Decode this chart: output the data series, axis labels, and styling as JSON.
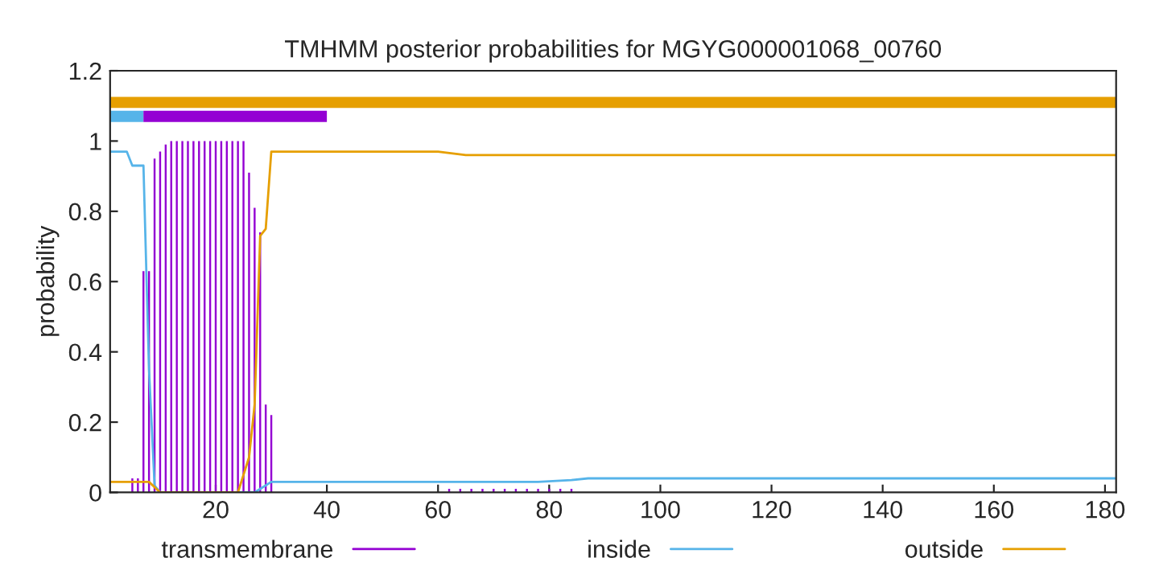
{
  "chart_data": {
    "type": "line",
    "title": "TMHMM posterior probabilities for MGYG000001068_00760",
    "ylabel": "probability",
    "xlim": [
      1,
      182
    ],
    "xticks": [
      20,
      40,
      60,
      80,
      100,
      120,
      140,
      160,
      180
    ],
    "ylim": [
      0,
      1.2
    ],
    "yticks": [
      0,
      0.2,
      0.4,
      0.6,
      0.8,
      1,
      1.2
    ],
    "grid": false,
    "legend": "bottom",
    "series": [
      {
        "name": "transmembrane",
        "type": "bar",
        "color": "#9400d3",
        "x": [
          5,
          6,
          7,
          8,
          9,
          10,
          11,
          12,
          13,
          14,
          15,
          16,
          17,
          18,
          19,
          20,
          21,
          22,
          23,
          24,
          25,
          26,
          27,
          28,
          29,
          30,
          62,
          64,
          66,
          68,
          70,
          72,
          74,
          76,
          78,
          80,
          82,
          84
        ],
        "values": [
          0.04,
          0.04,
          0.63,
          0.63,
          0.95,
          0.97,
          0.99,
          1,
          1,
          1,
          1,
          1,
          1,
          1,
          1,
          1,
          1,
          1,
          1,
          1,
          1,
          0.91,
          0.81,
          0.74,
          0.25,
          0.22,
          0.01,
          0.01,
          0.01,
          0.01,
          0.01,
          0.01,
          0.01,
          0.01,
          0.01,
          0.01,
          0.01,
          0.01
        ]
      },
      {
        "name": "inside",
        "color": "#56b4e9",
        "x": [
          1,
          4,
          5,
          7,
          8,
          9,
          10,
          27,
          29,
          30,
          78,
          84,
          87,
          182
        ],
        "values": [
          0.97,
          0.97,
          0.93,
          0.93,
          0.35,
          0.02,
          0,
          0,
          0.02,
          0.03,
          0.03,
          0.035,
          0.04,
          0.04
        ]
      },
      {
        "name": "outside",
        "color": "#e69f00",
        "x": [
          1,
          8,
          10,
          24,
          26,
          27,
          28,
          29,
          30,
          60,
          65,
          70,
          182
        ],
        "values": [
          0.03,
          0.03,
          0,
          0,
          0.1,
          0.25,
          0.73,
          0.75,
          0.97,
          0.97,
          0.96,
          0.96,
          0.96
        ]
      },
      {
        "color": "#e69f00",
        "x": [
          1,
          182
        ],
        "values": [
          1.11,
          1.11
        ]
      },
      {
        "color": "#56b4e9",
        "x": [
          1,
          7
        ],
        "values": [
          1.07,
          1.07
        ]
      },
      {
        "color": "#9400d3",
        "x": [
          7,
          40
        ],
        "values": [
          1.07,
          1.07
        ]
      }
    ]
  }
}
